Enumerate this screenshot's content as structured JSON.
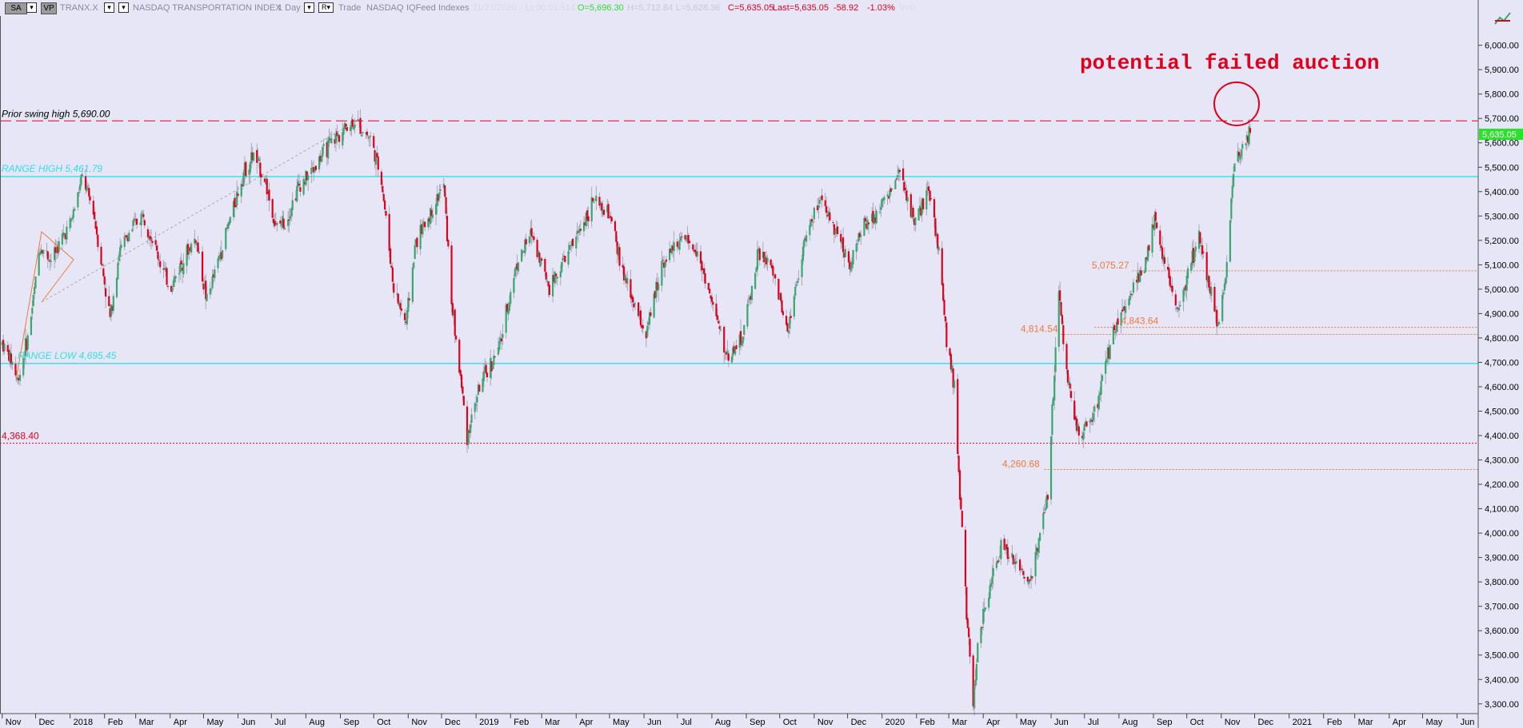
{
  "toolbar": {
    "sa_label": "SA",
    "vp_label": "VP",
    "symbol": "TRANX.X",
    "description": "NASDAQ TRANSPORTATION INDEX",
    "interval": "1 Day",
    "r_label": "R",
    "mode": "Trade",
    "exchange": "NASDAQ",
    "feed": "IQFeed",
    "category": "Indexes",
    "timestamp": "11/27/2020 - 13:00:01.514",
    "open": "O=5,696.30",
    "high": "H=5,712.84",
    "low": "L=5,628.36",
    "close": "C=5,635.05",
    "last": "Last=5,635.05",
    "change": "-58.92",
    "change_pct": "-1.03%",
    "volume": "V=0"
  },
  "colors": {
    "background": "#e6e6f7",
    "up_candle": "#3aa76d",
    "down_candle": "#e0001b",
    "range_line": "#2fe0e6",
    "swing_line": "#e0001b",
    "level_orange": "#f07a3c",
    "annotation": "#e0001b"
  },
  "chart_data": {
    "type": "candlestick",
    "symbol": "TRANX.X",
    "interval": "1 Day",
    "y_ticks": [
      "6,000.00",
      "5,900.00",
      "5,800.00",
      "5,700.00",
      "5,600.00",
      "5,500.00",
      "5,400.00",
      "5,300.00",
      "5,200.00",
      "5,100.00",
      "5,000.00",
      "4,900.00",
      "4,800.00",
      "4,700.00",
      "4,600.00",
      "4,500.00",
      "4,400.00",
      "4,300.00",
      "4,200.00",
      "4,100.00",
      "4,000.00",
      "3,900.00",
      "3,800.00",
      "3,700.00",
      "3,600.00",
      "3,500.00",
      "3,400.00",
      "3,300.00"
    ],
    "y_range": [
      3260,
      6120
    ],
    "x_ticks": [
      "Nov",
      "Dec",
      "2018",
      "Feb",
      "Mar",
      "Apr",
      "May",
      "Jun",
      "Jul",
      "Aug",
      "Sep",
      "Oct",
      "Nov",
      "Dec",
      "2019",
      "Feb",
      "Mar",
      "Apr",
      "May",
      "Jun",
      "Jul",
      "Aug",
      "Sep",
      "Oct",
      "Nov",
      "Dec",
      "2020",
      "Feb",
      "Mar",
      "Apr",
      "May",
      "Jun",
      "Jul",
      "Aug",
      "Sep",
      "Oct",
      "Nov",
      "Dec",
      "2021",
      "Feb",
      "Mar",
      "Apr",
      "May",
      "Jun"
    ],
    "date_range": [
      "2017-10-30",
      "2021-06-20"
    ],
    "last_price": "5,635.05",
    "levels": [
      {
        "label": "Prior swing high 5,690.00",
        "value": 5690,
        "style": "dashed"
      },
      {
        "label": "RANGE HIGH 5,461.79",
        "value": 5461.79,
        "style": "solid"
      },
      {
        "label": "RANGE LOW 4,695.45",
        "value": 4695.45,
        "style": "solid"
      },
      {
        "label": "4,368.40",
        "value": 4368.4,
        "style": "dotted"
      },
      {
        "label": "5,075.27",
        "value": 5075.27,
        "style": "dotted"
      },
      {
        "label": "4,843.64",
        "value": 4843.64,
        "style": "dotted"
      },
      {
        "label": "4,814.54",
        "value": 4814.54,
        "style": "dotted"
      },
      {
        "label": "4,260.68",
        "value": 4260.68,
        "style": "dotted"
      }
    ],
    "annotation": "potential failed auction",
    "price_path": [
      [
        "2017-11-01",
        4780
      ],
      [
        "2017-11-10",
        4700
      ],
      [
        "2017-11-15",
        4625
      ],
      [
        "2017-11-25",
        4820
      ],
      [
        "2017-12-05",
        5180
      ],
      [
        "2017-12-15",
        5120
      ],
      [
        "2018-01-02",
        5280
      ],
      [
        "2018-01-12",
        5460
      ],
      [
        "2018-01-22",
        5320
      ],
      [
        "2018-02-06",
        4880
      ],
      [
        "2018-02-14",
        5150
      ],
      [
        "2018-02-24",
        5240
      ],
      [
        "2018-03-08",
        5310
      ],
      [
        "2018-03-20",
        5150
      ],
      [
        "2018-04-01",
        5000
      ],
      [
        "2018-04-12",
        5120
      ],
      [
        "2018-04-24",
        5210
      ],
      [
        "2018-05-04",
        4950
      ],
      [
        "2018-05-18",
        5180
      ],
      [
        "2018-06-06",
        5480
      ],
      [
        "2018-06-15",
        5550
      ],
      [
        "2018-06-25",
        5450
      ],
      [
        "2018-07-05",
        5250
      ],
      [
        "2018-07-15",
        5290
      ],
      [
        "2018-07-25",
        5420
      ],
      [
        "2018-08-06",
        5480
      ],
      [
        "2018-08-20",
        5580
      ],
      [
        "2018-09-05",
        5660
      ],
      [
        "2018-09-14",
        5690
      ],
      [
        "2018-09-28",
        5620
      ],
      [
        "2018-10-08",
        5450
      ],
      [
        "2018-10-19",
        5000
      ],
      [
        "2018-10-30",
        4860
      ],
      [
        "2018-11-08",
        5200
      ],
      [
        "2018-11-20",
        5300
      ],
      [
        "2018-12-03",
        5430
      ],
      [
        "2018-12-10",
        4950
      ],
      [
        "2018-12-24",
        4400
      ],
      [
        "2019-01-04",
        4600
      ],
      [
        "2019-01-22",
        4760
      ],
      [
        "2019-02-06",
        5100
      ],
      [
        "2019-02-20",
        5230
      ],
      [
        "2019-03-08",
        5010
      ],
      [
        "2019-03-20",
        5110
      ],
      [
        "2019-04-03",
        5230
      ],
      [
        "2019-04-16",
        5360
      ],
      [
        "2019-05-01",
        5300
      ],
      [
        "2019-05-14",
        5050
      ],
      [
        "2019-06-03",
        4810
      ],
      [
        "2019-06-17",
        5110
      ],
      [
        "2019-07-03",
        5200
      ],
      [
        "2019-07-19",
        5160
      ],
      [
        "2019-08-05",
        4880
      ],
      [
        "2019-08-15",
        4720
      ],
      [
        "2019-08-28",
        4800
      ],
      [
        "2019-09-12",
        5150
      ],
      [
        "2019-09-24",
        5080
      ],
      [
        "2019-10-08",
        4830
      ],
      [
        "2019-10-22",
        5170
      ],
      [
        "2019-11-05",
        5360
      ],
      [
        "2019-11-19",
        5260
      ],
      [
        "2019-12-03",
        5100
      ],
      [
        "2019-12-16",
        5270
      ],
      [
        "2020-01-02",
        5350
      ],
      [
        "2020-01-16",
        5470
      ],
      [
        "2020-01-31",
        5280
      ],
      [
        "2020-02-12",
        5400
      ],
      [
        "2020-02-21",
        5160
      ],
      [
        "2020-02-28",
        4800
      ],
      [
        "2020-03-06",
        4600
      ],
      [
        "2020-03-12",
        4080
      ],
      [
        "2020-03-18",
        3600
      ],
      [
        "2020-03-23",
        3280
      ],
      [
        "2020-03-27",
        3550
      ],
      [
        "2020-04-06",
        3750
      ],
      [
        "2020-04-17",
        3950
      ],
      [
        "2020-04-30",
        3880
      ],
      [
        "2020-05-13",
        3800
      ],
      [
        "2020-05-29",
        4150
      ],
      [
        "2020-06-08",
        5000
      ],
      [
        "2020-06-15",
        4650
      ],
      [
        "2020-06-26",
        4400
      ],
      [
        "2020-07-10",
        4480
      ],
      [
        "2020-07-24",
        4780
      ],
      [
        "2020-08-07",
        4950
      ],
      [
        "2020-08-24",
        5100
      ],
      [
        "2020-09-02",
        5280
      ],
      [
        "2020-09-22",
        4900
      ],
      [
        "2020-10-12",
        5220
      ],
      [
        "2020-10-29",
        4850
      ],
      [
        "2020-11-06",
        5100
      ],
      [
        "2020-11-12",
        5480
      ],
      [
        "2020-11-18",
        5560
      ],
      [
        "2020-11-27",
        5635
      ]
    ]
  }
}
